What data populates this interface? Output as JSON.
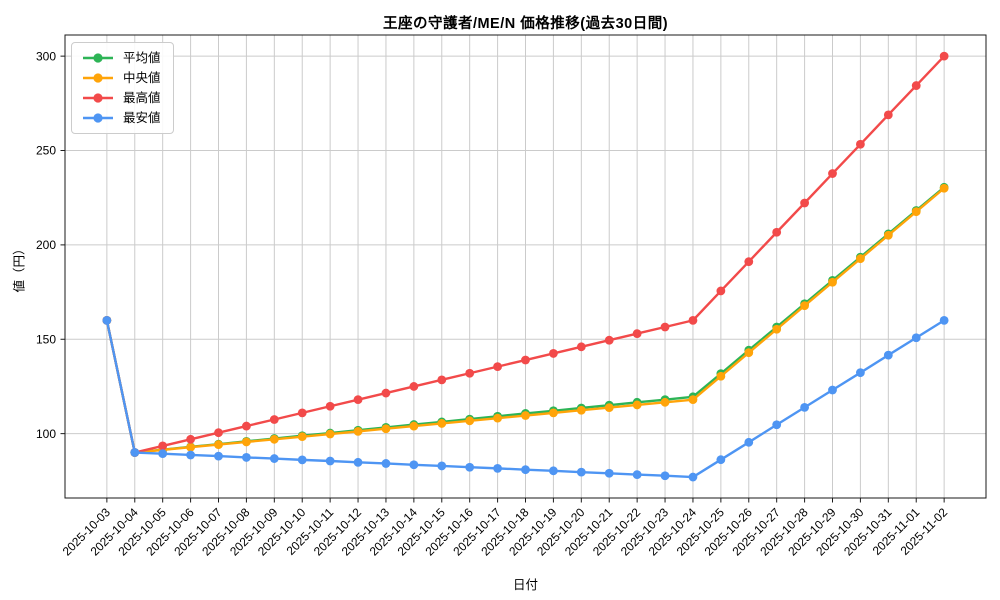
{
  "chart_data": {
    "type": "line",
    "title": "王座の守護者/ME/N 価格推移(過去30日間)",
    "xlabel": "日付",
    "ylabel": "値（円）",
    "grid": true,
    "legend_position": "upper-left",
    "yticks": [
      100,
      150,
      200,
      250,
      300
    ],
    "ylim": [
      65.9,
      311.2
    ],
    "x": [
      "2025-10-03",
      "2025-10-04",
      "2025-10-05",
      "2025-10-06",
      "2025-10-07",
      "2025-10-08",
      "2025-10-09",
      "2025-10-10",
      "2025-10-11",
      "2025-10-12",
      "2025-10-13",
      "2025-10-14",
      "2025-10-15",
      "2025-10-16",
      "2025-10-17",
      "2025-10-18",
      "2025-10-19",
      "2025-10-20",
      "2025-10-21",
      "2025-10-22",
      "2025-10-23",
      "2025-10-24",
      "2025-10-25",
      "2025-10-26",
      "2025-10-27",
      "2025-10-28",
      "2025-10-29",
      "2025-10-30",
      "2025-10-31",
      "2025-11-01",
      "2025-11-02"
    ],
    "series": [
      {
        "key": "mean",
        "name": "平均値",
        "color": "#2db456",
        "values": [
          160,
          90,
          91.5,
          93,
          94.4,
          95.9,
          97.4,
          98.9,
          100.3,
          101.8,
          103.3,
          104.8,
          106.2,
          107.7,
          109.2,
          110.7,
          112.1,
          113.6,
          115.1,
          116.6,
          118,
          119.5,
          131.8,
          144.2,
          156.5,
          168.8,
          181.2,
          193.5,
          205.8,
          218.2,
          230.5
        ]
      },
      {
        "key": "median",
        "name": "中央値",
        "color": "#ffa409",
        "values": [
          160,
          90,
          91.4,
          92.8,
          94.2,
          95.6,
          97,
          98.4,
          99.8,
          101.2,
          102.6,
          104,
          105.4,
          106.8,
          108.2,
          109.6,
          111,
          112.4,
          113.8,
          115.2,
          116.6,
          118,
          130.4,
          142.9,
          155.3,
          167.8,
          180.2,
          192.7,
          205.1,
          217.6,
          230
        ]
      },
      {
        "key": "max",
        "name": "最高値",
        "color": "#f24a4a",
        "values": [
          160,
          90,
          93.5,
          97,
          100.5,
          104,
          107.5,
          111,
          114.5,
          118,
          121.5,
          125,
          128.5,
          132,
          135.5,
          139,
          142.5,
          146,
          149.5,
          153,
          156.5,
          160,
          175.6,
          191.1,
          206.7,
          222.2,
          237.8,
          253.3,
          268.9,
          284.4,
          300
        ]
      },
      {
        "key": "min",
        "name": "最安値",
        "color": "#4e95f3",
        "values": [
          160,
          90,
          89.4,
          88.7,
          88.1,
          87.4,
          86.8,
          86.1,
          85.5,
          84.8,
          84.2,
          83.5,
          82.9,
          82.2,
          81.6,
          80.9,
          80.3,
          79.6,
          79,
          78.3,
          77.7,
          77,
          86.2,
          95.4,
          104.7,
          113.9,
          123.1,
          132.3,
          141.6,
          150.8,
          160
        ]
      }
    ],
    "axis_color": "#1a1a1a",
    "grid_color": "#cbcbcb"
  }
}
